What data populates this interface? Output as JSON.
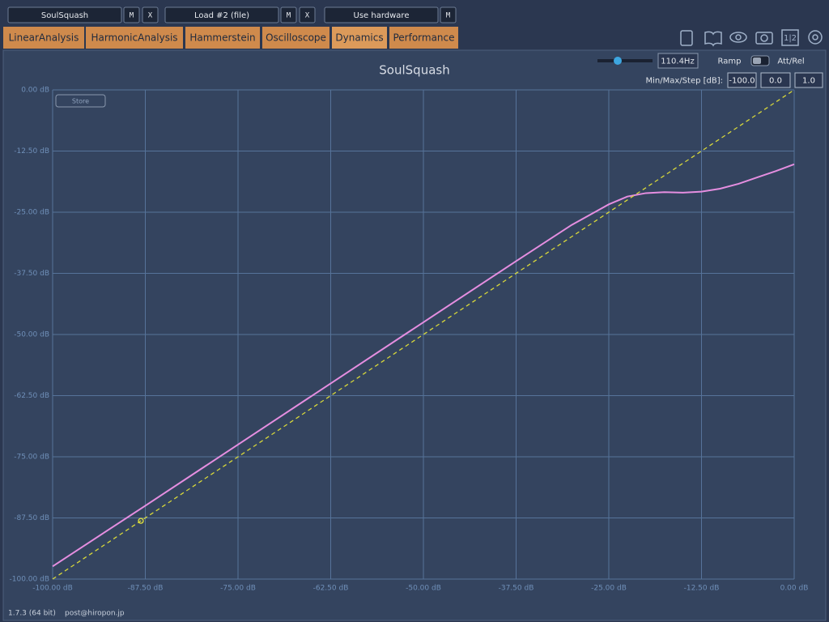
{
  "toolbar": {
    "slots": [
      {
        "label": "SoulSquash",
        "buttons": [
          "M",
          "X"
        ]
      },
      {
        "label": "Load #2 (file)",
        "buttons": [
          "M",
          "X"
        ]
      },
      {
        "label": "Use hardware",
        "buttons": [
          "M"
        ]
      }
    ],
    "icon_text": "1|2"
  },
  "tabs": [
    "LinearAnalysis",
    "HarmonicAnalysis",
    "Hammerstein",
    "Oscilloscope",
    "Dynamics",
    "Performance"
  ],
  "controls": {
    "frequency": "110.4Hz",
    "ramp": "Ramp",
    "att_rel": "Att/Rel",
    "range_label": "Min/Max/Step [dB]:",
    "range_values": [
      "-100.0",
      "0.0",
      "1.0"
    ],
    "store": "Store"
  },
  "footer": {
    "version": "1.7.3 (64 bit)",
    "contact": "post@hiropon.jp"
  },
  "chart_data": {
    "type": "line",
    "title": "SoulSquash",
    "x": [
      -100,
      -87.5,
      -75,
      -62.5,
      -50,
      -37.5,
      -30,
      -25,
      -22.5,
      -20,
      -17.5,
      -15,
      -12.5,
      -10,
      -7.5,
      -5,
      -2.5,
      0
    ],
    "series": [
      {
        "color": "#e58ee0",
        "values": [
          -97.4,
          -85.0,
          -72.5,
          -60.0,
          -47.5,
          -35.0,
          -27.6,
          -23.4,
          -21.8,
          -21.1,
          -20.9,
          -21.0,
          -20.8,
          -20.2,
          -19.2,
          -17.9,
          -16.6,
          -15.2
        ]
      },
      {
        "color": "#d8d83a",
        "dashed": true,
        "x": [
          -100,
          0
        ],
        "values": [
          -100,
          0
        ]
      }
    ],
    "marker": {
      "x": -88.1,
      "y": -88.1,
      "color": "#e8e83a"
    },
    "xlim": [
      -100,
      0
    ],
    "ylim": [
      -100,
      0
    ],
    "xticks": [
      {
        "value": -100,
        "label": "-100.00 dB"
      },
      {
        "value": -87.5,
        "label": "-87.50 dB"
      },
      {
        "value": -75,
        "label": "-75.00 dB"
      },
      {
        "value": -62.5,
        "label": "-62.50 dB"
      },
      {
        "value": -50,
        "label": "-50.00 dB"
      },
      {
        "value": -37.5,
        "label": "-37.50 dB"
      },
      {
        "value": -25,
        "label": "-25.00 dB"
      },
      {
        "value": -12.5,
        "label": "-12.50 dB"
      },
      {
        "value": 0,
        "label": "0.00 dB"
      }
    ],
    "yticks": [
      {
        "value": 0,
        "label": "0.00 dB"
      },
      {
        "value": -12.5,
        "label": "-12.50 dB"
      },
      {
        "value": -25,
        "label": "-25.00 dB"
      },
      {
        "value": -37.5,
        "label": "-37.50 dB"
      },
      {
        "value": -50,
        "label": "-50.00 dB"
      },
      {
        "value": -62.5,
        "label": "-62.50 dB"
      },
      {
        "value": -75,
        "label": "-75.00 dB"
      },
      {
        "value": -87.5,
        "label": "-87.50 dB"
      },
      {
        "value": -100,
        "label": "-100.00 dB"
      }
    ],
    "grid": true
  }
}
